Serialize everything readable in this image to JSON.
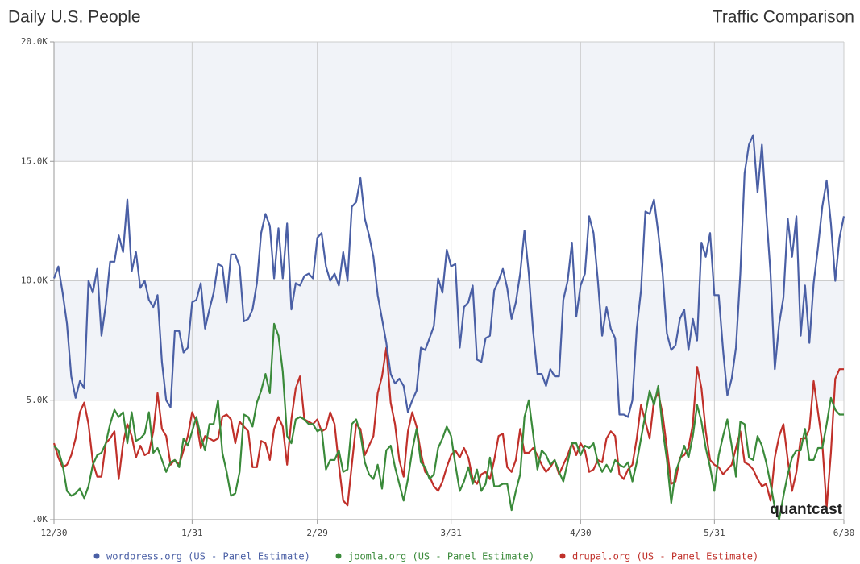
{
  "chart_data": {
    "type": "line",
    "title": "Daily U.S. People",
    "subtitle": "Traffic Comparison",
    "watermark": "quantcast",
    "categories": [
      "12/30",
      null,
      null,
      null,
      null,
      null,
      null,
      null,
      null,
      null,
      null,
      null,
      null,
      null,
      null,
      null,
      null,
      null,
      null,
      null,
      null,
      null,
      null,
      null,
      null,
      null,
      null,
      null,
      null,
      null,
      null,
      null,
      "1/31",
      null,
      null,
      null,
      null,
      null,
      null,
      null,
      null,
      null,
      null,
      null,
      null,
      null,
      null,
      null,
      null,
      null,
      null,
      null,
      null,
      null,
      null,
      null,
      null,
      null,
      null,
      null,
      null,
      "2/29",
      null,
      null,
      null,
      null,
      null,
      null,
      null,
      null,
      null,
      null,
      null,
      null,
      null,
      null,
      null,
      null,
      null,
      null,
      null,
      null,
      null,
      null,
      null,
      null,
      null,
      null,
      null,
      null,
      null,
      null,
      "3/31",
      null,
      null,
      null,
      null,
      null,
      null,
      null,
      null,
      null,
      null,
      null,
      null,
      null,
      null,
      null,
      null,
      null,
      null,
      null,
      null,
      null,
      null,
      null,
      null,
      null,
      null,
      null,
      null,
      null,
      "4/30",
      null,
      null,
      null,
      null,
      null,
      null,
      null,
      null,
      null,
      null,
      null,
      null,
      null,
      null,
      null,
      null,
      null,
      null,
      null,
      null,
      null,
      null,
      null,
      null,
      null,
      null,
      null,
      null,
      null,
      null,
      "5/31",
      null,
      null,
      null,
      null,
      null,
      null,
      null,
      null,
      null,
      null,
      null,
      null,
      null,
      null,
      null,
      null,
      null,
      null,
      null,
      null,
      null,
      null,
      null,
      null,
      null,
      null,
      null,
      null,
      null,
      "6/30"
    ],
    "series": [
      {
        "name": "wordpress.org (US - Panel Estimate)",
        "color": "#4a5fa5",
        "values": [
          10100,
          10600,
          9500,
          8200,
          6000,
          5100,
          5800,
          5500,
          10000,
          9500,
          10500,
          7700,
          9000,
          10800,
          10800,
          11900,
          11200,
          13400,
          10400,
          11200,
          9700,
          10000,
          9200,
          8900,
          9400,
          6600,
          5000,
          4700,
          7900,
          7900,
          7000,
          7200,
          9100,
          9200,
          9900,
          8000,
          8800,
          9500,
          10700,
          10600,
          9100,
          11100,
          11100,
          10600,
          8300,
          8400,
          8800,
          9900,
          12000,
          12800,
          12300,
          10100,
          12200,
          10100,
          12400,
          8800,
          9900,
          9800,
          10200,
          10300,
          10100,
          11800,
          12000,
          10600,
          10000,
          10300,
          9800,
          11200,
          10000,
          13100,
          13300,
          14300,
          12600,
          11900,
          11000,
          9400,
          8400,
          7400,
          6100,
          5700,
          5900,
          5600,
          4500,
          5000,
          5400,
          7200,
          7100,
          7600,
          8100,
          10100,
          9500,
          11300,
          10600,
          10700,
          7200,
          8900,
          9100,
          9800,
          6700,
          6600,
          7600,
          7700,
          9600,
          10000,
          10500,
          9700,
          8400,
          9100,
          10300,
          12100,
          10300,
          7900,
          6100,
          6100,
          5600,
          6300,
          6000,
          6000,
          9200,
          10000,
          11600,
          8500,
          9800,
          10300,
          12700,
          12000,
          10000,
          7700,
          8900,
          8000,
          7600,
          4400,
          4400,
          4300,
          5000,
          8000,
          9600,
          12900,
          12800,
          13400,
          12000,
          10300,
          7800,
          7100,
          7300,
          8400,
          8800,
          7100,
          8400,
          7500,
          11600,
          11000,
          12000,
          9400,
          9400,
          7100,
          5200,
          5900,
          7200,
          10300,
          14500,
          15700,
          16100,
          13700,
          15700,
          12900,
          10300,
          6300,
          8200,
          9300,
          12600,
          11000,
          12700,
          7700,
          9800,
          7400,
          9900,
          11400,
          13100,
          14200,
          12400,
          10000,
          11800,
          12700
        ]
      },
      {
        "name": "joomla.org (US - Panel Estimate)",
        "color": "#3a8a3a",
        "values": [
          3100,
          2900,
          2300,
          1200,
          1000,
          1100,
          1300,
          900,
          1400,
          2300,
          2700,
          2800,
          3200,
          4000,
          4600,
          4300,
          4500,
          3200,
          4500,
          3300,
          3400,
          3600,
          4500,
          2800,
          3000,
          2500,
          2000,
          2400,
          2500,
          2200,
          3400,
          3100,
          3700,
          4300,
          3500,
          2900,
          4000,
          4000,
          5000,
          2800,
          2000,
          1000,
          1100,
          2000,
          4400,
          4300,
          3900,
          4900,
          5400,
          6100,
          5300,
          8200,
          7700,
          6200,
          3500,
          3200,
          4200,
          4300,
          4200,
          4000,
          4000,
          3700,
          3800,
          2100,
          2500,
          2500,
          2900,
          2000,
          2100,
          4000,
          4200,
          3600,
          2400,
          1900,
          1700,
          2300,
          1300,
          2900,
          3100,
          2200,
          1500,
          800,
          1700,
          2900,
          3800,
          2400,
          2200,
          1700,
          1900,
          3000,
          3400,
          3900,
          3500,
          2300,
          1200,
          1600,
          2200,
          1500,
          2100,
          1200,
          1500,
          2600,
          1400,
          1400,
          1500,
          1500,
          400,
          1200,
          1900,
          4300,
          5000,
          3600,
          2100,
          2900,
          2700,
          2300,
          2500,
          2000,
          1600,
          2400,
          3200,
          3200,
          2700,
          3100,
          3000,
          3200,
          2400,
          2000,
          2300,
          2000,
          2500,
          2300,
          2200,
          2400,
          1600,
          2400,
          3400,
          4400,
          5400,
          4800,
          5600,
          3800,
          2500,
          700,
          2000,
          2500,
          3100,
          2600,
          3500,
          4800,
          4100,
          3000,
          2200,
          1200,
          2700,
          3500,
          4200,
          3100,
          1800,
          4100,
          4000,
          2600,
          2500,
          3500,
          3100,
          2400,
          1500,
          500,
          0,
          1000,
          1900,
          2600,
          2900,
          2900,
          3800,
          2500,
          2500,
          3000,
          3000,
          4000,
          5100,
          4600,
          4400,
          4400
        ]
      },
      {
        "name": "drupal.org (US - Panel Estimate)",
        "color": "#c0302a",
        "values": [
          3200,
          2600,
          2200,
          2300,
          2700,
          3400,
          4500,
          4900,
          4000,
          2400,
          1800,
          1800,
          3200,
          3400,
          3700,
          1700,
          3200,
          4000,
          3500,
          2600,
          3100,
          2700,
          2800,
          3700,
          5300,
          3800,
          3500,
          2300,
          2500,
          2300,
          2900,
          3500,
          4500,
          4100,
          3000,
          3500,
          3400,
          3300,
          3400,
          4300,
          4400,
          4200,
          3200,
          4100,
          3900,
          3700,
          2200,
          2200,
          3300,
          3200,
          2500,
          3800,
          4300,
          3900,
          2300,
          4200,
          5500,
          6000,
          4200,
          4100,
          4000,
          4200,
          3700,
          3800,
          4500,
          4000,
          2300,
          800,
          600,
          2300,
          4000,
          3800,
          2700,
          3100,
          3500,
          5300,
          6000,
          7200,
          4900,
          4000,
          2500,
          1800,
          3700,
          4500,
          3900,
          2800,
          2000,
          1800,
          1400,
          1200,
          1600,
          2200,
          2700,
          2900,
          2600,
          3000,
          2600,
          1700,
          1500,
          1900,
          2000,
          1700,
          2500,
          3500,
          3600,
          2200,
          2000,
          2500,
          3800,
          2800,
          2800,
          3000,
          2700,
          2300,
          2000,
          2200,
          2500,
          1900,
          2300,
          2700,
          3200,
          2700,
          3200,
          2900,
          2000,
          2100,
          2500,
          2400,
          3400,
          3700,
          3500,
          1900,
          1700,
          2100,
          2300,
          3400,
          4800,
          4100,
          3400,
          5000,
          5300,
          4400,
          3000,
          1500,
          1600,
          2600,
          2700,
          3000,
          4000,
          6400,
          5500,
          3700,
          2500,
          2300,
          2200,
          1900,
          2100,
          2300,
          3000,
          3700,
          2400,
          2300,
          2100,
          1700,
          1400,
          1500,
          800,
          2600,
          3500,
          4000,
          2500,
          1200,
          2000,
          3400,
          3400,
          3800,
          5800,
          4500,
          3200,
          500,
          2800,
          5900,
          6300,
          6300
        ]
      }
    ],
    "ylim": [
      0,
      20000
    ],
    "yticks": [
      {
        "value": 0,
        "label": ".0K"
      },
      {
        "value": 5000,
        "label": "5.0K"
      },
      {
        "value": 10000,
        "label": "10.0K"
      },
      {
        "value": 15000,
        "label": "15.0K"
      },
      {
        "value": 20000,
        "label": "20.0K"
      }
    ],
    "grid": true,
    "legend": "bottom"
  }
}
